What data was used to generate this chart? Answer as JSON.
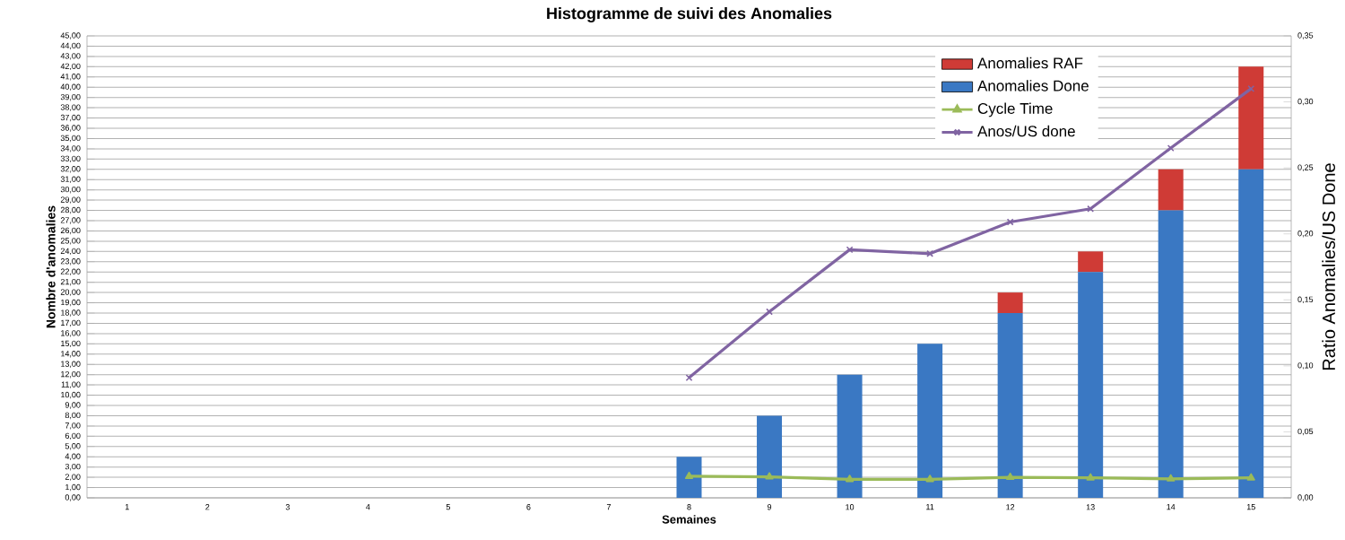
{
  "chart_data": {
    "type": "bar",
    "title": "Histogramme de suivi des Anomalies",
    "xlabel": "Semaines",
    "ylabel": "Nombre d'anomalies",
    "y2label": "Ratio Anomalies/US Done",
    "categories": [
      "1",
      "2",
      "3",
      "4",
      "5",
      "6",
      "7",
      "8",
      "9",
      "10",
      "11",
      "12",
      "13",
      "14",
      "15"
    ],
    "stacked": true,
    "grid": "y",
    "legend": "top right",
    "series": [
      {
        "name": "Anomalies Done",
        "color": "#3a78c3",
        "values": [
          null,
          null,
          null,
          null,
          null,
          null,
          null,
          4,
          8,
          12,
          15,
          18,
          22,
          28,
          32
        ]
      },
      {
        "name": "Anomalies RAF",
        "color": "#cf3b36",
        "values": [
          null,
          null,
          null,
          null,
          null,
          null,
          null,
          null,
          null,
          null,
          null,
          2,
          2,
          4,
          10
        ]
      },
      {
        "name": "Cycle Time",
        "type": "line",
        "marker": "triangle",
        "color": "#9bbb59",
        "values": [
          null,
          null,
          null,
          null,
          null,
          null,
          null,
          2.1,
          2.05,
          1.8,
          1.8,
          2.0,
          1.95,
          1.85,
          1.95
        ]
      },
      {
        "name": "Anos/US done",
        "type": "line",
        "marker": "cross",
        "axis": "y2",
        "color": "#8064a2",
        "values": [
          null,
          null,
          null,
          null,
          null,
          null,
          null,
          0.091,
          0.141,
          0.188,
          0.185,
          0.209,
          0.219,
          0.265,
          0.31
        ]
      }
    ],
    "ylim": [
      0,
      45
    ],
    "yticks": [
      {
        "value": 0,
        "label": "0,00"
      },
      {
        "value": 1,
        "label": "1,00"
      },
      {
        "value": 2,
        "label": "2,00"
      },
      {
        "value": 3,
        "label": "3,00"
      },
      {
        "value": 4,
        "label": "4,00"
      },
      {
        "value": 5,
        "label": "5,00"
      },
      {
        "value": 6,
        "label": "6,00"
      },
      {
        "value": 7,
        "label": "7,00"
      },
      {
        "value": 8,
        "label": "8,00"
      },
      {
        "value": 9,
        "label": "9,00"
      },
      {
        "value": 10,
        "label": "10,00"
      },
      {
        "value": 11,
        "label": "11,00"
      },
      {
        "value": 12,
        "label": "12,00"
      },
      {
        "value": 13,
        "label": "13,00"
      },
      {
        "value": 14,
        "label": "14,00"
      },
      {
        "value": 15,
        "label": "15,00"
      },
      {
        "value": 16,
        "label": "16,00"
      },
      {
        "value": 17,
        "label": "17,00"
      },
      {
        "value": 18,
        "label": "18,00"
      },
      {
        "value": 19,
        "label": "19,00"
      },
      {
        "value": 20,
        "label": "20,00"
      },
      {
        "value": 21,
        "label": "21,00"
      },
      {
        "value": 22,
        "label": "22,00"
      },
      {
        "value": 23,
        "label": "23,00"
      },
      {
        "value": 24,
        "label": "24,00"
      },
      {
        "value": 25,
        "label": "25,00"
      },
      {
        "value": 26,
        "label": "26,00"
      },
      {
        "value": 27,
        "label": "27,00"
      },
      {
        "value": 28,
        "label": "28,00"
      },
      {
        "value": 29,
        "label": "29,00"
      },
      {
        "value": 30,
        "label": "30,00"
      },
      {
        "value": 31,
        "label": "31,00"
      },
      {
        "value": 32,
        "label": "32,00"
      },
      {
        "value": 33,
        "label": "33,00"
      },
      {
        "value": 34,
        "label": "34,00"
      },
      {
        "value": 35,
        "label": "35,00"
      },
      {
        "value": 36,
        "label": "36,00"
      },
      {
        "value": 37,
        "label": "37,00"
      },
      {
        "value": 38,
        "label": "38,00"
      },
      {
        "value": 39,
        "label": "39,00"
      },
      {
        "value": 40,
        "label": "40,00"
      },
      {
        "value": 41,
        "label": "41,00"
      },
      {
        "value": 42,
        "label": "42,00"
      },
      {
        "value": 43,
        "label": "43,00"
      },
      {
        "value": 44,
        "label": "44,00"
      },
      {
        "value": 45,
        "label": "45,00"
      }
    ],
    "y2lim": [
      0,
      0.35
    ],
    "y2ticks": [
      {
        "value": 0,
        "label": "0,00"
      },
      {
        "value": 0.05,
        "label": "0,05"
      },
      {
        "value": 0.1,
        "label": "0,10"
      },
      {
        "value": 0.15,
        "label": "0,15"
      },
      {
        "value": 0.2,
        "label": "0,20"
      },
      {
        "value": 0.25,
        "label": "0,25"
      },
      {
        "value": 0.3,
        "label": "0,30"
      },
      {
        "value": 0.35,
        "label": "0,35"
      }
    ]
  }
}
